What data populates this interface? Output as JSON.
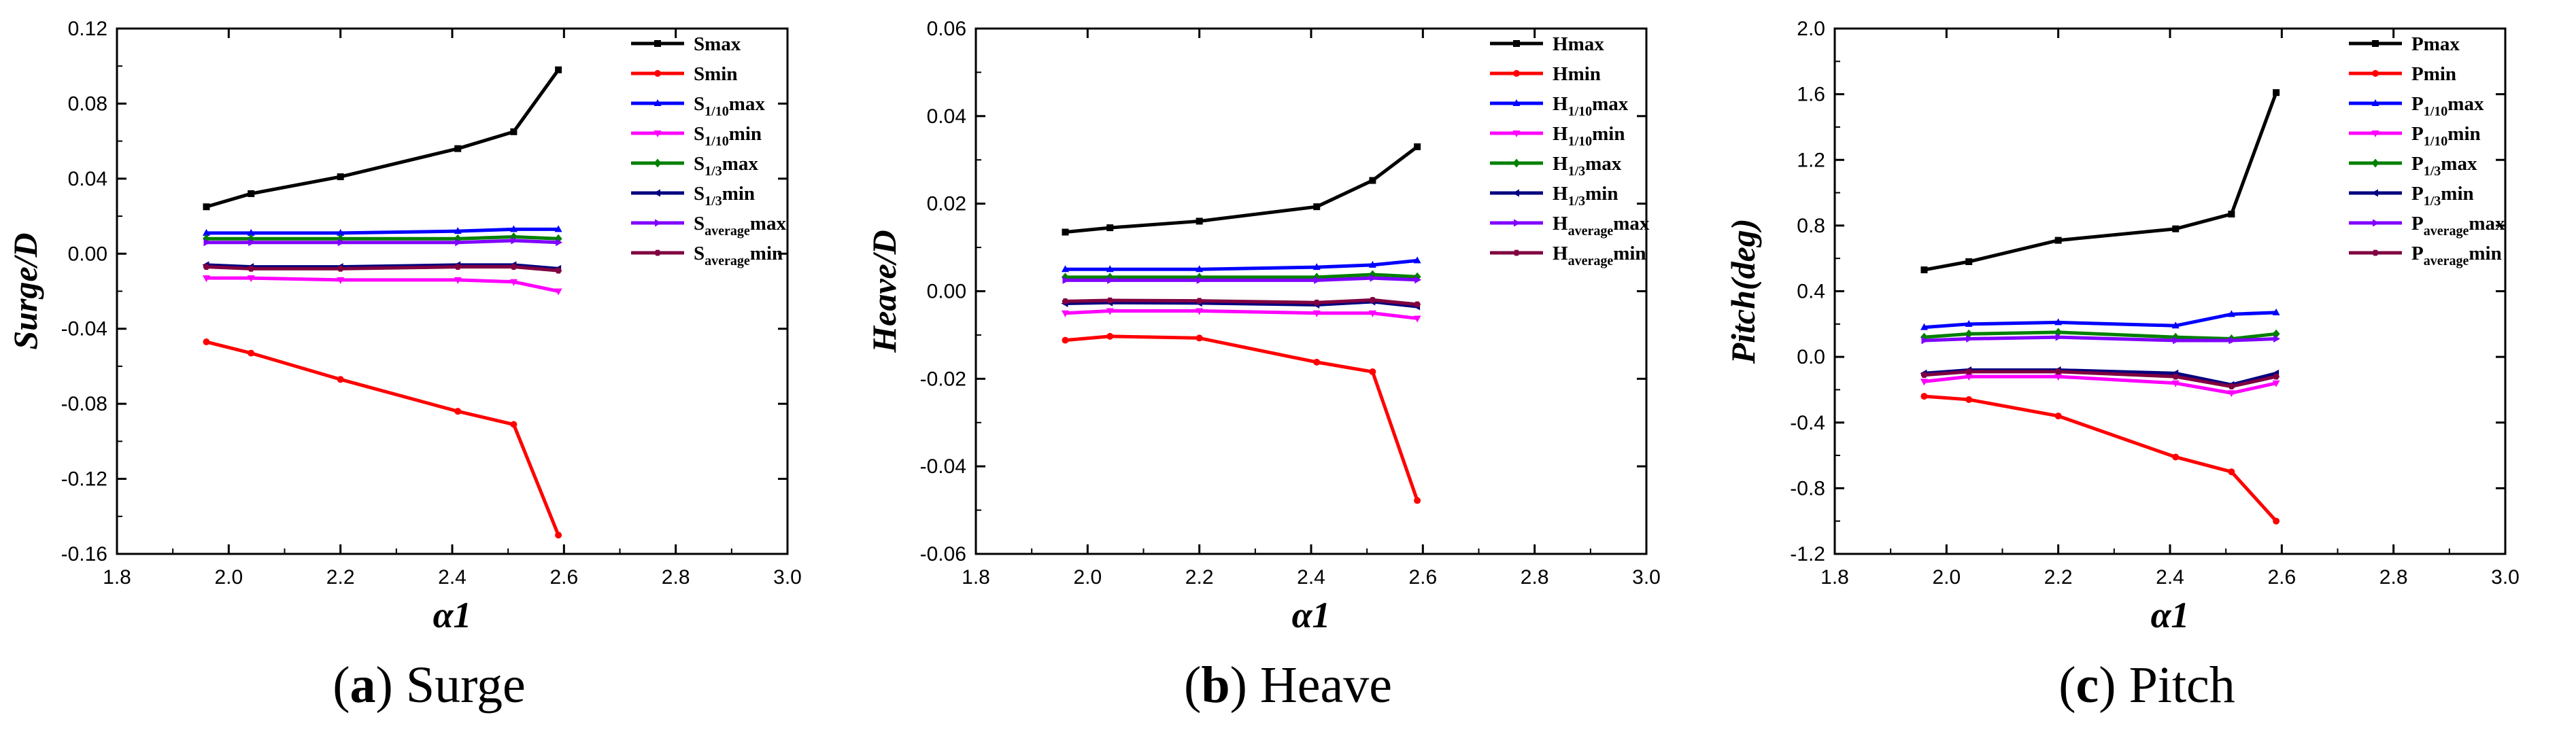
{
  "chart_data": [
    {
      "type": "line",
      "id": "surge",
      "caption": {
        "letter": "a",
        "text": "Surge"
      },
      "ylabel": "Surge/D",
      "xlabel": "α1",
      "xlim": [
        1.8,
        3.0
      ],
      "ylim": [
        -0.16,
        0.12
      ],
      "xticks": [
        "1.8",
        "2.0",
        "2.2",
        "2.4",
        "2.6",
        "2.8",
        "3.0"
      ],
      "yticks": [
        "0.12",
        "0.08",
        "0.04",
        "0.00",
        "-0.04",
        "-0.08",
        "-0.12",
        "-0.16"
      ],
      "x": [
        1.96,
        2.04,
        2.2,
        2.41,
        2.51,
        2.59
      ],
      "series": [
        {
          "name": "Smax",
          "base": "S",
          "sub": "",
          "suffix": "max",
          "color": "#000000",
          "marker": "square",
          "values": [
            0.025,
            0.032,
            0.041,
            0.056,
            0.065,
            0.098
          ]
        },
        {
          "name": "Smin",
          "base": "S",
          "sub": "",
          "suffix": "min",
          "color": "#ff0000",
          "marker": "circle",
          "values": [
            -0.047,
            -0.053,
            -0.067,
            -0.084,
            -0.091,
            -0.15
          ]
        },
        {
          "name": "S1/10max",
          "base": "S",
          "sub": "1/10",
          "suffix": "max",
          "color": "#0000ff",
          "marker": "triangle-up",
          "values": [
            0.011,
            0.011,
            0.011,
            0.012,
            0.013,
            0.013
          ]
        },
        {
          "name": "S1/10min",
          "base": "S",
          "sub": "1/10",
          "suffix": "min",
          "color": "#ff00ff",
          "marker": "triangle-down",
          "values": [
            -0.013,
            -0.013,
            -0.014,
            -0.014,
            -0.015,
            -0.02
          ]
        },
        {
          "name": "S1/3max",
          "base": "S",
          "sub": "1/3",
          "suffix": "max",
          "color": "#008000",
          "marker": "diamond",
          "values": [
            0.008,
            0.008,
            0.008,
            0.008,
            0.009,
            0.008
          ]
        },
        {
          "name": "S1/3min",
          "base": "S",
          "sub": "1/3",
          "suffix": "min",
          "color": "#000080",
          "marker": "triangle-left",
          "values": [
            -0.006,
            -0.007,
            -0.007,
            -0.006,
            -0.006,
            -0.008
          ]
        },
        {
          "name": "Saveragemax",
          "base": "S",
          "sub": "average",
          "suffix": "max",
          "color": "#8000ff",
          "marker": "triangle-right",
          "values": [
            0.006,
            0.006,
            0.006,
            0.006,
            0.007,
            0.006
          ]
        },
        {
          "name": "Saveragemin",
          "base": "S",
          "sub": "average",
          "suffix": "min",
          "color": "#800040",
          "marker": "hexagon",
          "values": [
            -0.007,
            -0.008,
            -0.008,
            -0.007,
            -0.007,
            -0.009
          ]
        }
      ]
    },
    {
      "type": "line",
      "id": "heave",
      "caption": {
        "letter": "b",
        "text": "Heave"
      },
      "ylabel": "Heave/D",
      "xlabel": "α1",
      "xlim": [
        1.8,
        3.0
      ],
      "ylim": [
        -0.06,
        0.06
      ],
      "xticks": [
        "1.8",
        "2.0",
        "2.2",
        "2.4",
        "2.6",
        "2.8",
        "3.0"
      ],
      "yticks": [
        "0.06",
        "0.04",
        "0.02",
        "0.00",
        "-0.02",
        "-0.04",
        "-0.06"
      ],
      "x": [
        1.96,
        2.04,
        2.2,
        2.41,
        2.51,
        2.59
      ],
      "series": [
        {
          "name": "Hmax",
          "base": "H",
          "sub": "",
          "suffix": "max",
          "color": "#000000",
          "marker": "square",
          "values": [
            0.0135,
            0.0145,
            0.016,
            0.0193,
            0.0253,
            0.033
          ]
        },
        {
          "name": "Hmin",
          "base": "H",
          "sub": "",
          "suffix": "min",
          "color": "#ff0000",
          "marker": "circle",
          "values": [
            -0.0112,
            -0.0103,
            -0.0107,
            -0.0162,
            -0.0184,
            -0.0478
          ]
        },
        {
          "name": "H1/10max",
          "base": "H",
          "sub": "1/10",
          "suffix": "max",
          "color": "#0000ff",
          "marker": "triangle-up",
          "values": [
            0.005,
            0.005,
            0.005,
            0.0055,
            0.006,
            0.007
          ]
        },
        {
          "name": "H1/10min",
          "base": "H",
          "sub": "1/10",
          "suffix": "min",
          "color": "#ff00ff",
          "marker": "triangle-down",
          "values": [
            -0.005,
            -0.0045,
            -0.0045,
            -0.005,
            -0.005,
            -0.0062
          ]
        },
        {
          "name": "H1/3max",
          "base": "H",
          "sub": "1/3",
          "suffix": "max",
          "color": "#008000",
          "marker": "diamond",
          "values": [
            0.0032,
            0.0032,
            0.0032,
            0.0032,
            0.0038,
            0.0033
          ]
        },
        {
          "name": "H1/3min",
          "base": "H",
          "sub": "1/3",
          "suffix": "min",
          "color": "#000080",
          "marker": "triangle-left",
          "values": [
            -0.0028,
            -0.0026,
            -0.0027,
            -0.0031,
            -0.0024,
            -0.0035
          ]
        },
        {
          "name": "Haveragemax",
          "base": "H",
          "sub": "average",
          "suffix": "max",
          "color": "#8000ff",
          "marker": "triangle-right",
          "values": [
            0.0025,
            0.0025,
            0.0025,
            0.0025,
            0.003,
            0.0026
          ]
        },
        {
          "name": "Haveragemin",
          "base": "H",
          "sub": "average",
          "suffix": "min",
          "color": "#800040",
          "marker": "hexagon",
          "values": [
            -0.0023,
            -0.0021,
            -0.0022,
            -0.0026,
            -0.002,
            -0.003
          ]
        }
      ]
    },
    {
      "type": "line",
      "id": "pitch",
      "caption": {
        "letter": "c",
        "text": "Pitch"
      },
      "ylabel": "Pitch(deg)",
      "xlabel": "α1",
      "xlim": [
        1.8,
        3.0
      ],
      "ylim": [
        -1.2,
        2.0
      ],
      "xticks": [
        "1.8",
        "2.0",
        "2.2",
        "2.4",
        "2.6",
        "2.8",
        "3.0"
      ],
      "yticks": [
        "2.0",
        "1.6",
        "1.2",
        "0.8",
        "0.4",
        "0.0",
        "-0.4",
        "-0.8",
        "-1.2"
      ],
      "x": [
        1.96,
        2.04,
        2.2,
        2.41,
        2.51,
        2.59
      ],
      "series": [
        {
          "name": "Pmax",
          "base": "P",
          "sub": "",
          "suffix": "max",
          "color": "#000000",
          "marker": "square",
          "values": [
            0.53,
            0.58,
            0.71,
            0.78,
            0.87,
            1.61
          ]
        },
        {
          "name": "Pmin",
          "base": "P",
          "sub": "",
          "suffix": "min",
          "color": "#ff0000",
          "marker": "circle",
          "values": [
            -0.24,
            -0.26,
            -0.36,
            -0.61,
            -0.7,
            -1.0
          ]
        },
        {
          "name": "P1/10max",
          "base": "P",
          "sub": "1/10",
          "suffix": "max",
          "color": "#0000ff",
          "marker": "triangle-up",
          "values": [
            0.18,
            0.2,
            0.21,
            0.19,
            0.26,
            0.27
          ]
        },
        {
          "name": "P1/10min",
          "base": "P",
          "sub": "1/10",
          "suffix": "min",
          "color": "#ff00ff",
          "marker": "triangle-down",
          "values": [
            -0.15,
            -0.12,
            -0.12,
            -0.16,
            -0.22,
            -0.16
          ]
        },
        {
          "name": "P1/3max",
          "base": "P",
          "sub": "1/3",
          "suffix": "max",
          "color": "#008000",
          "marker": "diamond",
          "values": [
            0.12,
            0.14,
            0.15,
            0.12,
            0.11,
            0.14
          ]
        },
        {
          "name": "P1/3min",
          "base": "P",
          "sub": "1/3",
          "suffix": "min",
          "color": "#000080",
          "marker": "triangle-left",
          "values": [
            -0.1,
            -0.08,
            -0.08,
            -0.1,
            -0.17,
            -0.1
          ]
        },
        {
          "name": "Paveragemax",
          "base": "P",
          "sub": "average",
          "suffix": "max",
          "color": "#8000ff",
          "marker": "triangle-right",
          "values": [
            0.1,
            0.11,
            0.12,
            0.1,
            0.1,
            0.11
          ]
        },
        {
          "name": "Paveragemin",
          "base": "P",
          "sub": "average",
          "suffix": "min",
          "color": "#800040",
          "marker": "hexagon",
          "values": [
            -0.11,
            -0.09,
            -0.09,
            -0.12,
            -0.18,
            -0.12
          ]
        }
      ]
    }
  ]
}
